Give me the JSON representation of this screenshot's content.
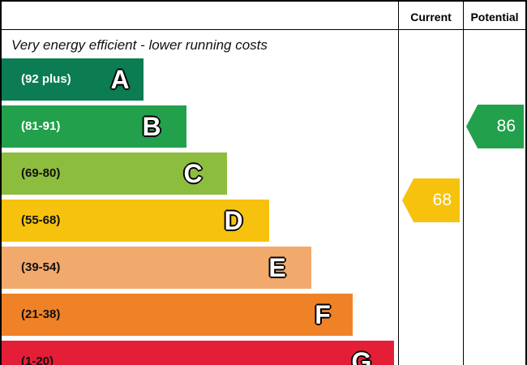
{
  "header": {
    "current_label": "Current",
    "potential_label": "Potential"
  },
  "top_note": "Very energy efficient - lower running costs",
  "bands": [
    {
      "range": "(92 plus)",
      "letter": "A",
      "color": "#0c7c52"
    },
    {
      "range": "(81-91)",
      "letter": "B",
      "color": "#22a04b"
    },
    {
      "range": "(69-80)",
      "letter": "C",
      "color": "#8dbd3e"
    },
    {
      "range": "(55-68)",
      "letter": "D",
      "color": "#f6c20d"
    },
    {
      "range": "(39-54)",
      "letter": "E",
      "color": "#f2a96c"
    },
    {
      "range": "(21-38)",
      "letter": "F",
      "color": "#ef8226"
    },
    {
      "range": "(1-20)",
      "letter": "G",
      "color": "#e41e37"
    }
  ],
  "ratings": {
    "current": {
      "value": "68",
      "band": "D",
      "color": "#f6c20d"
    },
    "potential": {
      "value": "86",
      "band": "B",
      "color": "#22a04b"
    }
  }
}
